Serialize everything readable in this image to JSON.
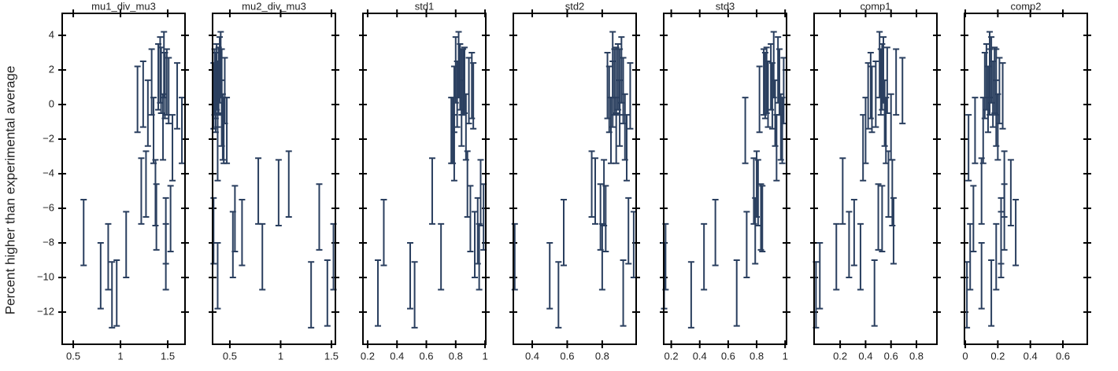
{
  "chart_data": {
    "type": "errorbar",
    "y_label": "Percent higher than experimental average",
    "color": "#2a3f5f",
    "y": [
      -7.4,
      -9.9,
      -8.8,
      -11,
      -10.9,
      -8.1,
      0.3,
      -5,
      0.6,
      -4.6,
      -0.5,
      1.3,
      -1.5,
      -5.1,
      -6.5,
      1.6,
      2,
      1.4,
      -1.3,
      2.3,
      1.1,
      -8.8,
      -7.3,
      1.3,
      0.8,
      -6.6,
      -2.5,
      0.5,
      -1.5
    ],
    "errors": [
      1.9,
      1.9,
      1.9,
      1.9,
      1.9,
      1.9,
      1.9,
      1.9,
      1.9,
      1.9,
      1.9,
      1.9,
      1.9,
      1.9,
      1.9,
      1.9,
      1.9,
      1.9,
      1.9,
      1.9,
      1.9,
      1.9,
      1.9,
      1.9,
      1.9,
      1.9,
      1.9,
      1.9,
      1.9
    ],
    "ylim": [
      -13.86,
      5.27
    ],
    "yticks": [
      {
        "value": -12,
        "label": "−12"
      },
      {
        "value": -10,
        "label": "−10"
      },
      {
        "value": -8,
        "label": "−8"
      },
      {
        "value": -6,
        "label": "−6"
      },
      {
        "value": -4,
        "label": "−4"
      },
      {
        "value": -2,
        "label": "−2"
      },
      0,
      2,
      4
    ],
    "subplots": [
      {
        "title": "mu1_div_mu3",
        "xlim": [
          0.383,
          1.683
        ],
        "xticks": [
          0.5,
          1,
          1.5
        ],
        "x": [
          0.61,
          0.79,
          0.87,
          0.91,
          0.96,
          1.06,
          1.18,
          1.22,
          1.24,
          1.27,
          1.29,
          1.33,
          1.35,
          1.37,
          1.38,
          1.4,
          1.42,
          1.43,
          1.45,
          1.46,
          1.47,
          1.48,
          1.48,
          1.49,
          1.51,
          1.53,
          1.55,
          1.6,
          1.65
        ]
      },
      {
        "title": "mu2_div_mu3",
        "xlim": [
          0.33,
          1.539
        ],
        "xticks": [
          0.5,
          1,
          1.5
        ],
        "x": [
          0.62,
          0.38,
          0.82,
          1.3,
          1.46,
          0.53,
          0.36,
          0.78,
          0.38,
          1.08,
          0.42,
          0.35,
          0.44,
          0.98,
          1.38,
          0.37,
          0.4,
          0.39,
          0.43,
          0.41,
          0.36,
          1.52,
          0.34,
          0.42,
          0.45,
          0.55,
          0.38,
          0.34,
          0.47
        ]
      },
      {
        "title": "std1",
        "xlim": [
          0.168,
          1.005
        ],
        "xticks": [
          0.2,
          0.4,
          0.6,
          0.8,
          1
        ],
        "x": [
          0.31,
          0.49,
          0.7,
          0.52,
          0.27,
          0.93,
          0.79,
          0.64,
          0.81,
          0.88,
          0.84,
          0.85,
          0.78,
          0.97,
          0.99,
          0.83,
          0.8,
          0.86,
          0.87,
          0.82,
          0.91,
          0.96,
          0.95,
          0.84,
          0.89,
          0.9,
          0.79,
          0.92,
          0.77
        ]
      },
      {
        "title": "std2",
        "xlim": [
          0.292,
          0.994
        ],
        "xticks": [
          0.4,
          0.6,
          0.8
        ],
        "x": [
          0.58,
          0.5,
          0.8,
          0.55,
          0.92,
          0.98,
          0.84,
          0.76,
          0.86,
          0.74,
          0.9,
          0.87,
          0.85,
          0.81,
          0.79,
          0.89,
          0.91,
          0.88,
          0.93,
          0.86,
          0.83,
          0.3,
          0.95,
          0.9,
          0.92,
          0.82,
          0.94,
          0.96,
          0.88
        ]
      },
      {
        "title": "std3",
        "xlim": [
          0.147,
          1.01
        ],
        "xticks": [
          0.2,
          0.4,
          0.6,
          0.8,
          1
        ],
        "x": [
          0.51,
          0.15,
          0.43,
          0.34,
          0.66,
          0.73,
          0.82,
          0.78,
          0.88,
          0.8,
          0.93,
          0.85,
          0.72,
          0.81,
          0.83,
          0.9,
          0.95,
          0.87,
          0.97,
          0.92,
          0.86,
          0.16,
          0.79,
          0.96,
          0.99,
          0.84,
          0.94,
          0.91,
          0.98
        ]
      },
      {
        "title": "comp1",
        "xlim": [
          -0.005,
          0.961
        ],
        "xticks": [
          0.2,
          0.4,
          0.6,
          0.8
        ],
        "x": [
          0.31,
          0.04,
          0.17,
          0.01,
          0.47,
          0.27,
          0.45,
          0.22,
          0.48,
          0.58,
          0.55,
          0.52,
          0.4,
          0.61,
          0.5,
          0.53,
          0.54,
          0.57,
          0.6,
          0.51,
          0.44,
          0.36,
          0.62,
          0.64,
          0.69,
          0.53,
          0.38,
          0.42,
          0.56
        ]
      },
      {
        "title": "comp2",
        "xlim": [
          -0.005,
          0.75
        ],
        "xticks": [
          0,
          0.2,
          0.4,
          0.6
        ],
        "x": [
          0.31,
          0.1,
          0.19,
          0.01,
          0.16,
          0.22,
          0.14,
          0.1,
          0.17,
          0.24,
          0.19,
          0.15,
          0.06,
          0.28,
          0.24,
          0.13,
          0.16,
          0.18,
          0.2,
          0.15,
          0.12,
          0.03,
          0.22,
          0.19,
          0.21,
          0.05,
          0.02,
          0.23,
          0.11
        ]
      }
    ]
  }
}
